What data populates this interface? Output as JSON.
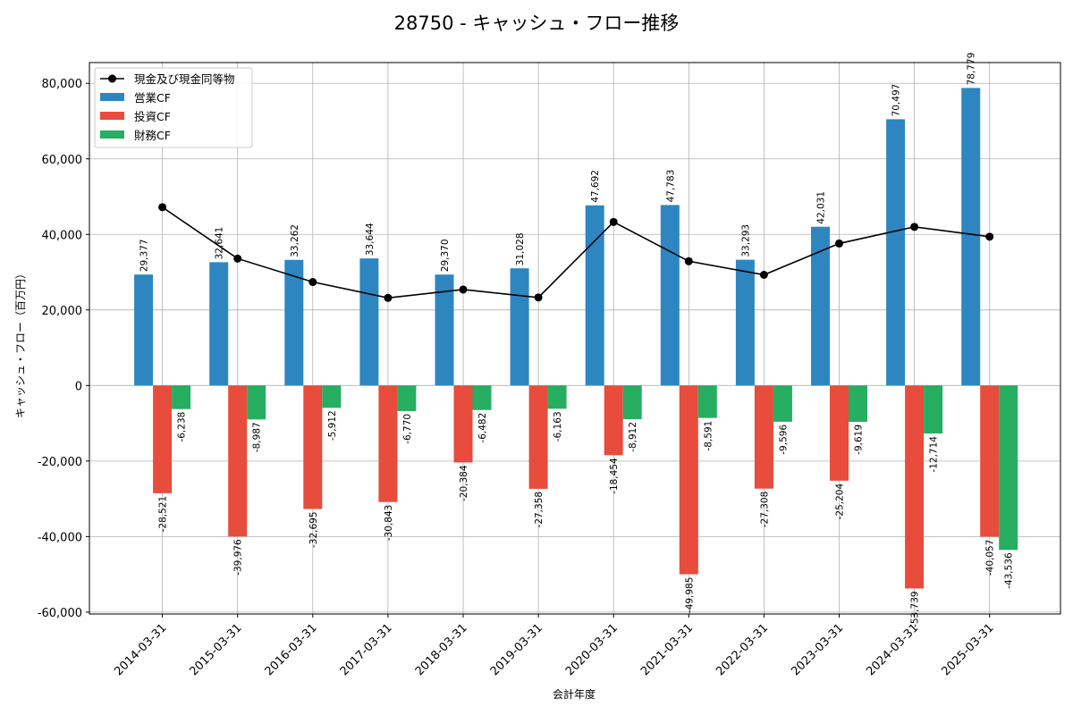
{
  "chart_data": {
    "type": "bar",
    "title": "28750 - キャッシュ・フロー推移",
    "xlabel": "会計年度",
    "ylabel": "キャッシュ・フロー（百万円）",
    "categories": [
      "2014-03-31",
      "2015-03-31",
      "2016-03-31",
      "2017-03-31",
      "2018-03-31",
      "2019-03-31",
      "2020-03-31",
      "2021-03-31",
      "2022-03-31",
      "2023-03-31",
      "2024-03-31",
      "2025-03-31"
    ],
    "ylim": [
      -60500,
      85500
    ],
    "yticks": [
      -60000,
      -40000,
      -20000,
      0,
      20000,
      40000,
      60000,
      80000
    ],
    "ytick_labels": [
      "-60,000",
      "-40,000",
      "-20,000",
      "0",
      "20,000",
      "40,000",
      "60,000",
      "80,000"
    ],
    "grid": true,
    "legend_position": "top-left",
    "series": [
      {
        "name": "営業CF",
        "kind": "bar",
        "color": "#2e86c1",
        "values": [
          29377,
          32641,
          33262,
          33644,
          29370,
          31028,
          47692,
          47783,
          33293,
          42031,
          70497,
          78779
        ],
        "labels": [
          "29,377",
          "32,641",
          "33,262",
          "33,644",
          "29,370",
          "31,028",
          "47,692",
          "47,783",
          "33,293",
          "42,031",
          "70,497",
          "78,779"
        ]
      },
      {
        "name": "投資CF",
        "kind": "bar",
        "color": "#e74c3c",
        "values": [
          -28521,
          -39976,
          -32695,
          -30843,
          -20384,
          -27358,
          -18454,
          -49985,
          -27308,
          -25204,
          -53739,
          -40057
        ],
        "labels": [
          "-28,521",
          "-39,976",
          "-32,695",
          "-30,843",
          "-20,384",
          "-27,358",
          "-18,454",
          "-49,985",
          "-27,308",
          "-25,204",
          "-53,739",
          "-40,057"
        ]
      },
      {
        "name": "財務CF",
        "kind": "bar",
        "color": "#27ae60",
        "values": [
          -6238,
          -8987,
          -5912,
          -6770,
          -6482,
          -6163,
          -8912,
          -8591,
          -9596,
          -9619,
          -12714,
          -43536
        ],
        "labels": [
          "-6,238",
          "-8,987",
          "-5,912",
          "-6,770",
          "-6,482",
          "-6,163",
          "-8,912",
          "-8,591",
          "-9,596",
          "-9,619",
          "-12,714",
          "-43,536"
        ]
      },
      {
        "name": "現金及び現金同等物",
        "kind": "line",
        "color": "#000000",
        "values": [
          47200,
          33600,
          27400,
          23200,
          25400,
          23300,
          43300,
          32900,
          29300,
          37600,
          42000,
          39400
        ]
      }
    ]
  }
}
